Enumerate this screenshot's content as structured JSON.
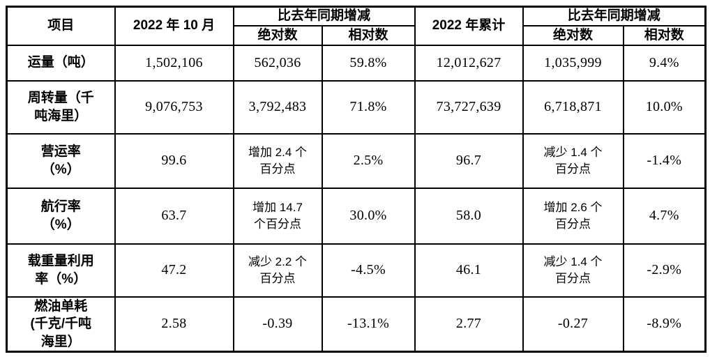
{
  "table": {
    "header": {
      "item": "项目",
      "month": "2022 年 10 月",
      "yoy_month": "比去年同期增减",
      "abs_month": "绝对数",
      "rel_month": "相对数",
      "cumulative": "2022 年累计",
      "yoy_cum": "比去年同期增减",
      "abs_cum": "绝对数",
      "rel_cum": "相对数"
    },
    "rows": [
      {
        "label": "运量（吨）",
        "month_value": "1,502,106",
        "month_abs": "562,036",
        "month_rel": "59.8%",
        "cum_value": "12,012,627",
        "cum_abs": "1,035,999",
        "cum_rel": "9.4%"
      },
      {
        "label": "周转量（千\n吨海里）",
        "month_value": "9,076,753",
        "month_abs": "3,792,483",
        "month_rel": "71.8%",
        "cum_value": "73,727,639",
        "cum_abs": "6,718,871",
        "cum_rel": "10.0%"
      },
      {
        "label": "营运率\n（%）",
        "month_value": "99.6",
        "month_abs": "增加 2.4 个\n百分点",
        "month_rel": "2.5%",
        "cum_value": "96.7",
        "cum_abs": "减少 1.4 个\n百分点",
        "cum_rel": "-1.4%"
      },
      {
        "label": "航行率\n（%）",
        "month_value": "63.7",
        "month_abs": "增加 14.7\n个百分点",
        "month_rel": "30.0%",
        "cum_value": "58.0",
        "cum_abs": "增加 2.6 个\n百分点",
        "cum_rel": "4.7%"
      },
      {
        "label": "载重量利用\n率（%）",
        "month_value": "47.2",
        "month_abs": "减少 2.2 个\n百分点",
        "month_rel": "-4.5%",
        "cum_value": "46.1",
        "cum_abs": "减少 1.4 个\n百分点",
        "cum_rel": "-2.9%"
      },
      {
        "label": "燃油单耗\n(千克/千吨\n海里）",
        "month_value": "2.58",
        "month_abs": "-0.39",
        "month_rel": "-13.1%",
        "cum_value": "2.77",
        "cum_abs": "-0.27",
        "cum_rel": "-8.9%"
      }
    ]
  },
  "colors": {
    "border": "#000000",
    "text": "#000000",
    "background": "#ffffff"
  }
}
